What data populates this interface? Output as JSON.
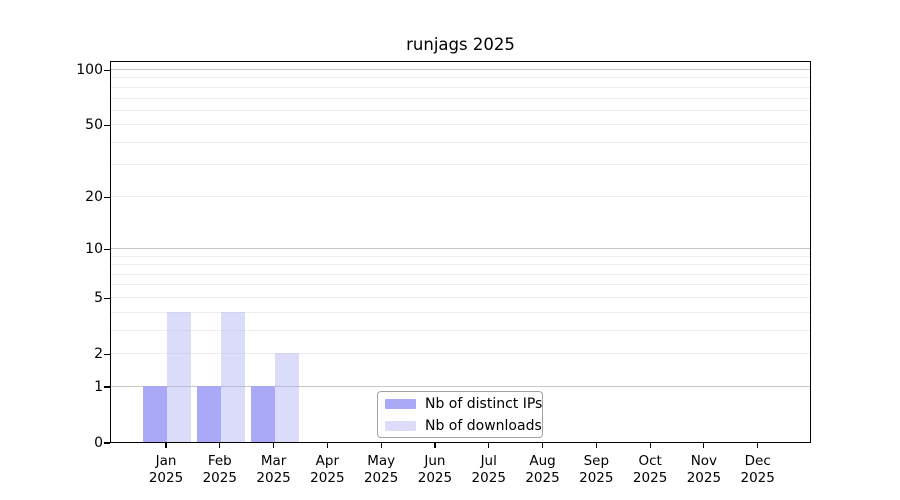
{
  "title": "runjags 2025",
  "chart_data": {
    "type": "bar",
    "title": "runjags 2025",
    "categories": [
      "Jan 2025",
      "Feb 2025",
      "Mar 2025",
      "Apr 2025",
      "May 2025",
      "Jun 2025",
      "Jul 2025",
      "Aug 2025",
      "Sep 2025",
      "Oct 2025",
      "Nov 2025",
      "Dec 2025"
    ],
    "series": [
      {
        "name": "Nb of distinct IPs",
        "color": "#a9a9f7",
        "values": [
          1,
          1,
          1,
          0,
          0,
          0,
          0,
          0,
          0,
          0,
          0,
          0
        ]
      },
      {
        "name": "Nb of downloads",
        "color": "#dcdcf8",
        "fill": "rgba(175,175,245,0.45)",
        "values": [
          4,
          4,
          2,
          0,
          0,
          0,
          0,
          0,
          0,
          0,
          0,
          0
        ]
      }
    ],
    "xlabel": "",
    "ylabel": "",
    "yscale": "log1p",
    "ylim": [
      0,
      113
    ],
    "yticks": [
      0,
      1,
      2,
      5,
      10,
      20,
      50,
      100
    ],
    "gridlines_major": [
      1,
      10,
      100
    ],
    "gridlines_minor": [
      2,
      3,
      4,
      5,
      6,
      7,
      8,
      9,
      20,
      30,
      40,
      50,
      60,
      70,
      80,
      90
    ],
    "grid": true,
    "legend_position": "bottom-center"
  }
}
